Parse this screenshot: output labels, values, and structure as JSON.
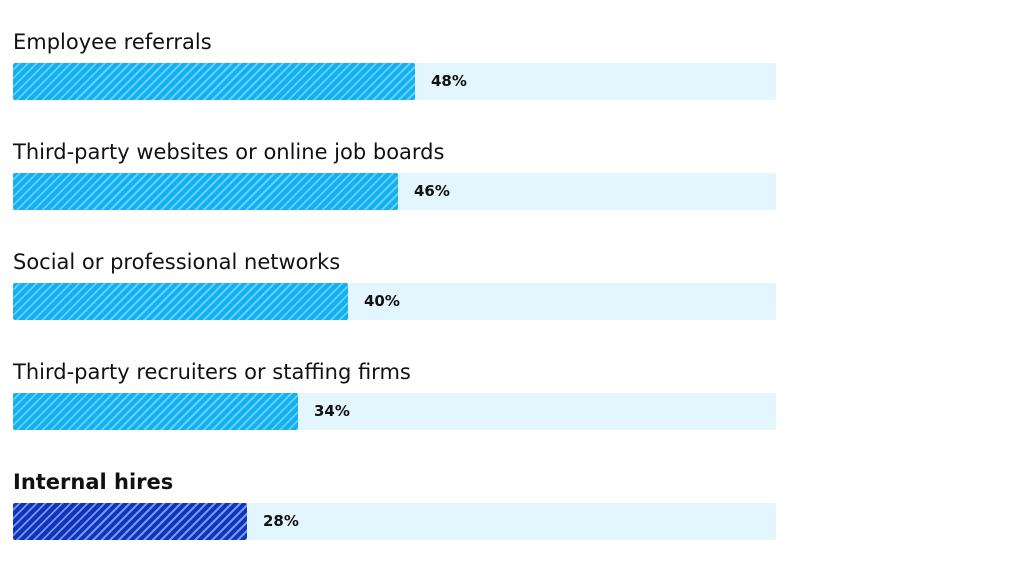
{
  "chart_data": {
    "type": "bar",
    "orientation": "horizontal",
    "categories": [
      "Employee referrals",
      "Third-party websites or online job boards",
      "Social or professional networks",
      "Third-party recruiters or staffing firms",
      "Internal hires"
    ],
    "values": [
      48,
      46,
      40,
      34,
      28
    ],
    "value_labels": [
      "48%",
      "46%",
      "40%",
      "34%",
      "28%"
    ],
    "highlighted": [
      false,
      false,
      false,
      false,
      true
    ],
    "xlim": [
      0,
      100
    ],
    "grid": false,
    "legend": "none"
  },
  "colors": {
    "track": "#e3f5fd",
    "bar": "#13aff0",
    "bar_stripe": "#5fd0ff",
    "highlight": "#1d2fb6",
    "highlight_stripe": "#5ea2ff",
    "text": "#111111"
  }
}
